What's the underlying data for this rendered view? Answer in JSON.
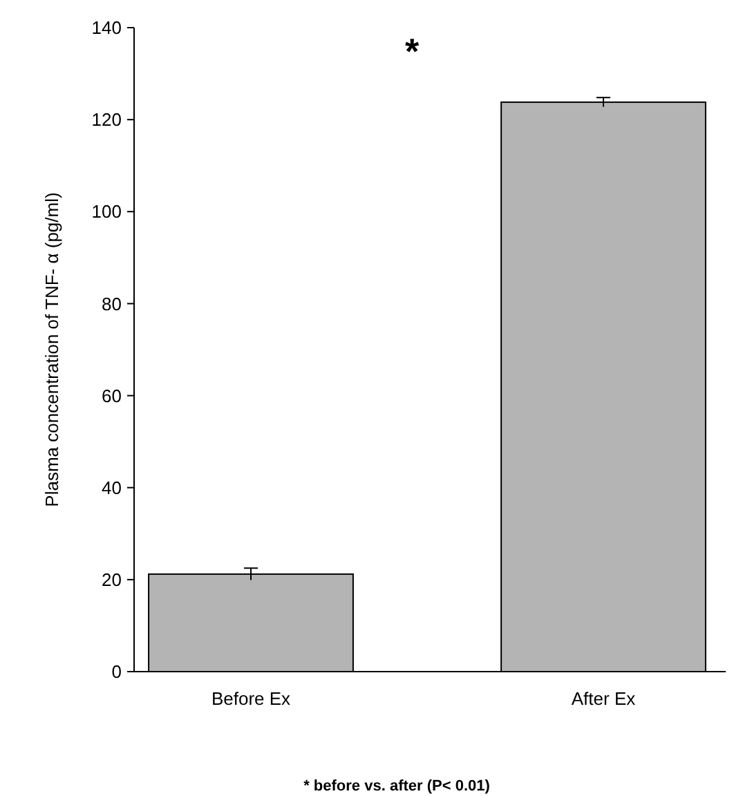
{
  "chart_data": {
    "type": "bar",
    "ylabel": "Plasma concentration of TNF- α (pg/ml)",
    "categories": [
      "Before Ex",
      "After Ex"
    ],
    "values": [
      21.2,
      123.8
    ],
    "errors": [
      1.3,
      1
    ],
    "color": "#b4b4b4",
    "ylim": [
      0,
      140
    ],
    "yticks": [
      0,
      20,
      40,
      60,
      80,
      100,
      120,
      140
    ],
    "grid": false,
    "annotations": [
      "*",
      "* before vs. after (P< 0.01)"
    ]
  }
}
